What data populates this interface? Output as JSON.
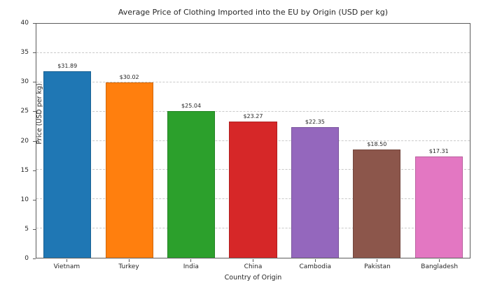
{
  "chart_data": {
    "type": "bar",
    "title": "Average Price of Clothing Imported into the EU by Origin (USD per kg)",
    "xlabel": "Country of Origin",
    "ylabel": "Price (USD per kg)",
    "categories": [
      "Vietnam",
      "Turkey",
      "India",
      "China",
      "Cambodia",
      "Pakistan",
      "Bangladesh"
    ],
    "values": [
      31.89,
      30.02,
      25.04,
      23.27,
      22.35,
      18.5,
      17.31
    ],
    "value_labels": [
      "$31.89",
      "$30.02",
      "$25.04",
      "$23.27",
      "$22.35",
      "$18.50",
      "$17.31"
    ],
    "bar_colors": [
      "#1f77b4",
      "#ff7f0e",
      "#2ca02c",
      "#d62728",
      "#9467bd",
      "#8c564b",
      "#e377c2"
    ],
    "ylim": [
      0,
      40
    ],
    "yticks": [
      0,
      5,
      10,
      15,
      20,
      25,
      30,
      35,
      40
    ],
    "grid": "horizontal-dashed",
    "grid_color": "#c9c9c9",
    "legend": "none",
    "background_color": "#ffffff"
  }
}
